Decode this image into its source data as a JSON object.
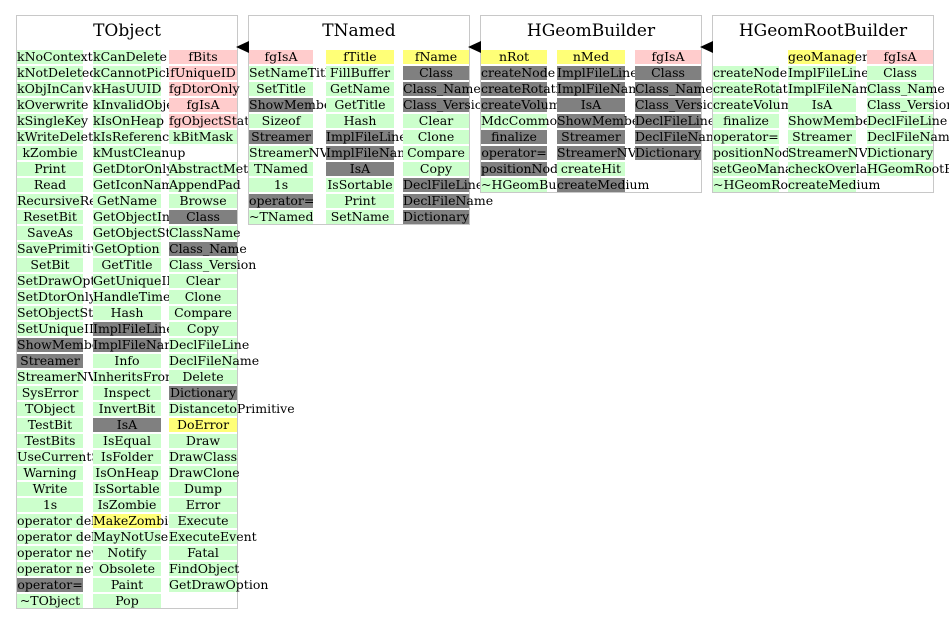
{
  "colors": {
    "method": "#ccffcc",
    "data": "#ffcccc",
    "highlight": "#ffff77",
    "inherited": "#808080",
    "border": "#c8c8c8"
  },
  "classes": [
    {
      "name": "TObject",
      "columns": [
        [
          [
            "kNoContextMenu",
            "p"
          ],
          [
            "kNotDeleted",
            "m"
          ],
          [
            "kObjInCanvas",
            "m"
          ],
          [
            "kOverwrite",
            "m"
          ],
          [
            "kSingleKey",
            "m"
          ],
          [
            "kWriteDelete",
            "m"
          ],
          [
            "kZombie",
            "m"
          ],
          [
            "Print",
            "m"
          ],
          [
            "Read",
            "m"
          ],
          [
            "RecursiveRemove",
            "m"
          ],
          [
            "ResetBit",
            "m"
          ],
          [
            "SaveAs",
            "m"
          ],
          [
            "SavePrimitive",
            "m"
          ],
          [
            "SetBit",
            "m"
          ],
          [
            "SetDrawOption",
            "m"
          ],
          [
            "SetDtorOnly",
            "m"
          ],
          [
            "SetObjectStat",
            "m"
          ],
          [
            "SetUniqueID",
            "m"
          ],
          [
            "ShowMembers",
            "g"
          ],
          [
            "Streamer",
            "g"
          ],
          [
            "StreamerNVirtual",
            "m"
          ],
          [
            "SysError",
            "m"
          ],
          [
            "TObject",
            "m"
          ],
          [
            "TestBit",
            "m"
          ],
          [
            "TestBits",
            "m"
          ],
          [
            "UseCurrentStyle",
            "m"
          ],
          [
            "Warning",
            "m"
          ],
          [
            "Write",
            "m"
          ],
          [
            "1s",
            "m"
          ],
          [
            "operator delete",
            "m"
          ],
          [
            "operator delete[]",
            "m"
          ],
          [
            "operator new",
            "m"
          ],
          [
            "operator new[]",
            "m"
          ],
          [
            "operator=",
            "g"
          ],
          [
            "~TObject",
            "m"
          ]
        ],
        [
          [
            "kCanDelete",
            "p"
          ],
          [
            "kCannotPick",
            "m"
          ],
          [
            "kHasUUID",
            "m"
          ],
          [
            "kInvalidObject",
            "m"
          ],
          [
            "kIsOnHeap",
            "m"
          ],
          [
            "kIsReferenced",
            "m"
          ],
          [
            "kMustCleanup",
            "m"
          ],
          [
            "GetDtorOnly",
            "m"
          ],
          [
            "GetIconName",
            "m"
          ],
          [
            "GetName",
            "m"
          ],
          [
            "GetObjectInfo",
            "m"
          ],
          [
            "GetObjectStat",
            "m"
          ],
          [
            "GetOption",
            "m"
          ],
          [
            "GetTitle",
            "m"
          ],
          [
            "GetUniqueID",
            "m"
          ],
          [
            "HandleTimer",
            "m"
          ],
          [
            "Hash",
            "m"
          ],
          [
            "ImplFileLine",
            "g"
          ],
          [
            "ImplFileName",
            "g"
          ],
          [
            "Info",
            "m"
          ],
          [
            "InheritsFrom",
            "m"
          ],
          [
            "Inspect",
            "m"
          ],
          [
            "InvertBit",
            "m"
          ],
          [
            "IsA",
            "g"
          ],
          [
            "IsEqual",
            "m"
          ],
          [
            "IsFolder",
            "m"
          ],
          [
            "IsOnHeap",
            "m"
          ],
          [
            "IsSortable",
            "m"
          ],
          [
            "IsZombie",
            "m"
          ],
          [
            "MakeZombie",
            "y"
          ],
          [
            "MayNotUse",
            "m"
          ],
          [
            "Notify",
            "m"
          ],
          [
            "Obsolete",
            "m"
          ],
          [
            "Paint",
            "m"
          ],
          [
            "Pop",
            "m"
          ]
        ],
        [
          [
            "fBits",
            "d"
          ],
          [
            "fUniqueID",
            "d"
          ],
          [
            "fgDtorOnly",
            "d"
          ],
          [
            "fgIsA",
            "d"
          ],
          [
            "fgObjectStat",
            "d"
          ],
          [
            "kBitMask",
            "m"
          ],
          [
            "",
            ""
          ],
          [
            "AbstractMethod",
            "m"
          ],
          [
            "AppendPad",
            "m"
          ],
          [
            "Browse",
            "m"
          ],
          [
            "Class",
            "g"
          ],
          [
            "ClassName",
            "m"
          ],
          [
            "Class_Name",
            "g"
          ],
          [
            "Class_Version",
            "m"
          ],
          [
            "Clear",
            "m"
          ],
          [
            "Clone",
            "m"
          ],
          [
            "Compare",
            "m"
          ],
          [
            "Copy",
            "m"
          ],
          [
            "DeclFileLine",
            "m"
          ],
          [
            "DeclFileName",
            "m"
          ],
          [
            "Delete",
            "m"
          ],
          [
            "Dictionary",
            "g"
          ],
          [
            "DistancetoPrimitive",
            "m"
          ],
          [
            "DoError",
            "y"
          ],
          [
            "Draw",
            "m"
          ],
          [
            "DrawClass",
            "m"
          ],
          [
            "DrawClone",
            "m"
          ],
          [
            "Dump",
            "m"
          ],
          [
            "Error",
            "m"
          ],
          [
            "Execute",
            "m"
          ],
          [
            "ExecuteEvent",
            "m"
          ],
          [
            "Fatal",
            "m"
          ],
          [
            "FindObject",
            "m"
          ],
          [
            "GetDrawOption",
            "m"
          ]
        ]
      ]
    },
    {
      "name": "TNamed",
      "columns": [
        [
          [
            "fgIsA",
            "d"
          ],
          [
            "SetNameTitle",
            "m"
          ],
          [
            "SetTitle",
            "m"
          ],
          [
            "ShowMembers",
            "g"
          ],
          [
            "Sizeof",
            "m"
          ],
          [
            "Streamer",
            "g"
          ],
          [
            "StreamerNVirtual",
            "m"
          ],
          [
            "TNamed",
            "m"
          ],
          [
            "1s",
            "m"
          ],
          [
            "operator=",
            "g"
          ],
          [
            "~TNamed",
            "m"
          ]
        ],
        [
          [
            "fTitle",
            "y"
          ],
          [
            "FillBuffer",
            "m"
          ],
          [
            "GetName",
            "m"
          ],
          [
            "GetTitle",
            "m"
          ],
          [
            "Hash",
            "m"
          ],
          [
            "ImplFileLine",
            "g"
          ],
          [
            "ImplFileName",
            "g"
          ],
          [
            "IsA",
            "g"
          ],
          [
            "IsSortable",
            "m"
          ],
          [
            "Print",
            "m"
          ],
          [
            "SetName",
            "m"
          ]
        ],
        [
          [
            "fName",
            "y"
          ],
          [
            "Class",
            "g"
          ],
          [
            "Class_Name",
            "g"
          ],
          [
            "Class_Version",
            "g"
          ],
          [
            "Clear",
            "m"
          ],
          [
            "Clone",
            "m"
          ],
          [
            "Compare",
            "m"
          ],
          [
            "Copy",
            "m"
          ],
          [
            "DeclFileLine",
            "g"
          ],
          [
            "DeclFileName",
            "g"
          ],
          [
            "Dictionary",
            "g"
          ]
        ]
      ]
    },
    {
      "name": "HGeomBuilder",
      "columns": [
        [
          [
            "nRot",
            "y"
          ],
          [
            "createNode",
            "g"
          ],
          [
            "createRotation",
            "g"
          ],
          [
            "createVolume",
            "g"
          ],
          [
            "MdcCommonBlock",
            "m"
          ],
          [
            "finalize",
            "g"
          ],
          [
            "operator=",
            "g"
          ],
          [
            "positionNode",
            "g"
          ],
          [
            "~HGeomBuilder",
            "m"
          ]
        ],
        [
          [
            "nMed",
            "y"
          ],
          [
            "ImplFileLine",
            "g"
          ],
          [
            "ImplFileName",
            "g"
          ],
          [
            "IsA",
            "g"
          ],
          [
            "ShowMembers",
            "g"
          ],
          [
            "Streamer",
            "g"
          ],
          [
            "StreamerNVirtual",
            "g"
          ],
          [
            "createHit",
            "m"
          ],
          [
            "createMedium",
            "g"
          ]
        ],
        [
          [
            "fgIsA",
            "d"
          ],
          [
            "Class",
            "g"
          ],
          [
            "Class_Name",
            "g"
          ],
          [
            "Class_Version",
            "g"
          ],
          [
            "DeclFileLine",
            "g"
          ],
          [
            "DeclFileName",
            "g"
          ],
          [
            "Dictionary",
            "g"
          ]
        ]
      ]
    },
    {
      "name": "HGeomRootBuilder",
      "columns": [
        [
          [
            "",
            ""
          ],
          [
            "createNode",
            "m"
          ],
          [
            "createRotation",
            "m"
          ],
          [
            "createVolume",
            "m"
          ],
          [
            "finalize",
            "m"
          ],
          [
            "operator=",
            "m"
          ],
          [
            "positionNode",
            "m"
          ],
          [
            "setGeoManager",
            "m"
          ],
          [
            "~HGeomRootBuilder",
            "m"
          ]
        ],
        [
          [
            "geoManager",
            "y"
          ],
          [
            "ImplFileLine",
            "m"
          ],
          [
            "ImplFileName",
            "m"
          ],
          [
            "IsA",
            "m"
          ],
          [
            "ShowMembers",
            "m"
          ],
          [
            "Streamer",
            "m"
          ],
          [
            "StreamerNVirtual",
            "m"
          ],
          [
            "checkOverlaps",
            "m"
          ],
          [
            "createMedium",
            "m"
          ]
        ],
        [
          [
            "fgIsA",
            "d"
          ],
          [
            "Class",
            "m"
          ],
          [
            "Class_Name",
            "m"
          ],
          [
            "Class_Version",
            "m"
          ],
          [
            "DeclFileLine",
            "m"
          ],
          [
            "DeclFileName",
            "m"
          ],
          [
            "Dictionary",
            "m"
          ],
          [
            "HGeomRootBuilder",
            "m"
          ]
        ]
      ]
    }
  ]
}
